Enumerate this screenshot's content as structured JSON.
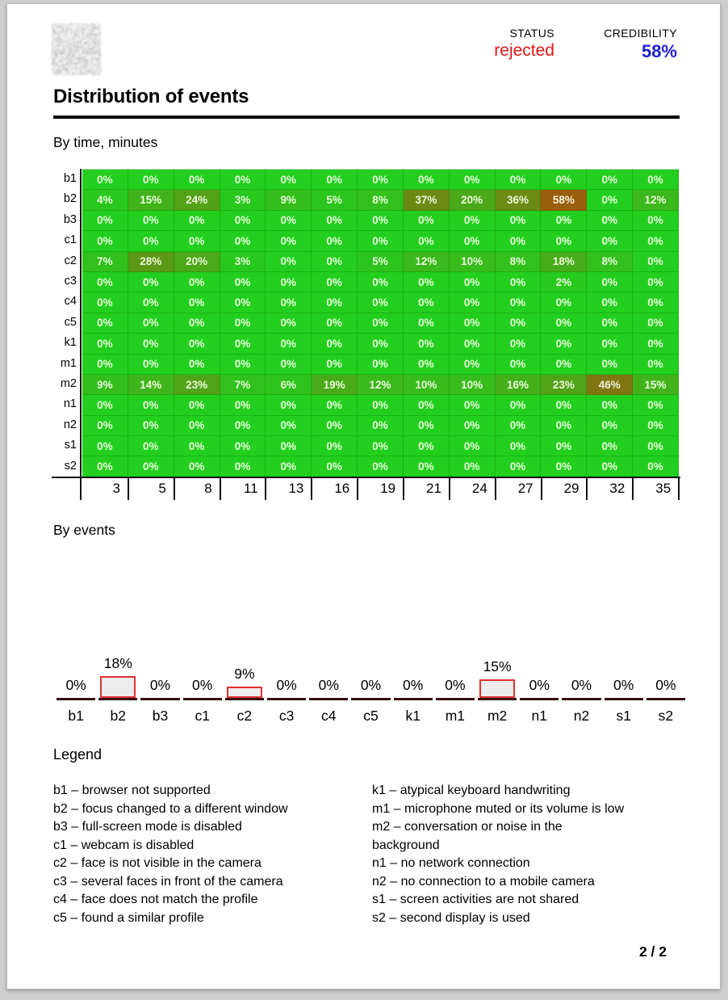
{
  "header": {
    "qr_icon": "qr-code",
    "status_label": "STATUS",
    "status_value": "rejected",
    "status_color": "#e01515",
    "credibility_label": "CREDIBILITY",
    "credibility_value": "58%",
    "credibility_color": "#1f1fd4"
  },
  "title": "Distribution of events",
  "page_number": "2 / 2",
  "chart_data": [
    {
      "type": "heatmap",
      "title": "By time, minutes",
      "unit": "%",
      "rows": [
        "b1",
        "b2",
        "b3",
        "c1",
        "c2",
        "c3",
        "c4",
        "c5",
        "k1",
        "m1",
        "m2",
        "n1",
        "n2",
        "s1",
        "s2"
      ],
      "columns": [
        3,
        5,
        8,
        11,
        13,
        16,
        19,
        21,
        24,
        27,
        29,
        32,
        35
      ],
      "values": [
        [
          0,
          0,
          0,
          0,
          0,
          0,
          0,
          0,
          0,
          0,
          0,
          0,
          0
        ],
        [
          4,
          15,
          24,
          3,
          9,
          5,
          8,
          37,
          20,
          36,
          58,
          0,
          12
        ],
        [
          0,
          0,
          0,
          0,
          0,
          0,
          0,
          0,
          0,
          0,
          0,
          0,
          0
        ],
        [
          0,
          0,
          0,
          0,
          0,
          0,
          0,
          0,
          0,
          0,
          0,
          0,
          0
        ],
        [
          7,
          28,
          20,
          3,
          0,
          0,
          5,
          12,
          10,
          8,
          18,
          8,
          0
        ],
        [
          0,
          0,
          0,
          0,
          0,
          0,
          0,
          0,
          0,
          0,
          2,
          0,
          0
        ],
        [
          0,
          0,
          0,
          0,
          0,
          0,
          0,
          0,
          0,
          0,
          0,
          0,
          0
        ],
        [
          0,
          0,
          0,
          0,
          0,
          0,
          0,
          0,
          0,
          0,
          0,
          0,
          0
        ],
        [
          0,
          0,
          0,
          0,
          0,
          0,
          0,
          0,
          0,
          0,
          0,
          0,
          0
        ],
        [
          0,
          0,
          0,
          0,
          0,
          0,
          0,
          0,
          0,
          0,
          0,
          0,
          0
        ],
        [
          9,
          14,
          23,
          7,
          6,
          19,
          12,
          10,
          10,
          16,
          23,
          46,
          15
        ],
        [
          0,
          0,
          0,
          0,
          0,
          0,
          0,
          0,
          0,
          0,
          0,
          0,
          0
        ],
        [
          0,
          0,
          0,
          0,
          0,
          0,
          0,
          0,
          0,
          0,
          0,
          0,
          0
        ],
        [
          0,
          0,
          0,
          0,
          0,
          0,
          0,
          0,
          0,
          0,
          0,
          0,
          0
        ],
        [
          0,
          0,
          0,
          0,
          0,
          0,
          0,
          0,
          0,
          0,
          0,
          0,
          0
        ]
      ],
      "colors": {
        "low": "#22cf1e",
        "high": "#99600e",
        "cell_text": "#edfbdf"
      },
      "grid": true,
      "legend_position": "none"
    },
    {
      "type": "bar",
      "title": "By events",
      "unit": "%",
      "categories": [
        "b1",
        "b2",
        "b3",
        "c1",
        "c2",
        "c3",
        "c4",
        "c5",
        "k1",
        "m1",
        "m2",
        "n1",
        "n2",
        "s1",
        "s2"
      ],
      "values": [
        0,
        18,
        0,
        0,
        9,
        0,
        0,
        0,
        0,
        0,
        15,
        0,
        0,
        0,
        0
      ],
      "ylim": [
        0,
        100
      ],
      "bar_fill": "#ececec",
      "bar_border": "#e03030",
      "axis_color": "#360c0c",
      "grid": false,
      "legend_position": "none"
    }
  ],
  "legend": {
    "title": "Legend",
    "col1": [
      "b1 – browser not supported",
      "b2 – focus changed to a different window",
      "b3 – full-screen mode is disabled",
      "c1 – webcam is disabled",
      "c2 – face is not visible in the camera",
      "c3 – several faces in front of the camera",
      "c4 – face does not match the profile",
      "c5 – found a similar profile"
    ],
    "col2": [
      "k1 – atypical keyboard handwriting",
      "m1 – microphone muted or its volume is low",
      "m2 – conversation or noise in the\nbackground",
      "n1 – no network connection",
      "n2 – no connection to a mobile camera",
      "s1 – screen activities are not shared",
      "s2 – second display is used"
    ]
  }
}
